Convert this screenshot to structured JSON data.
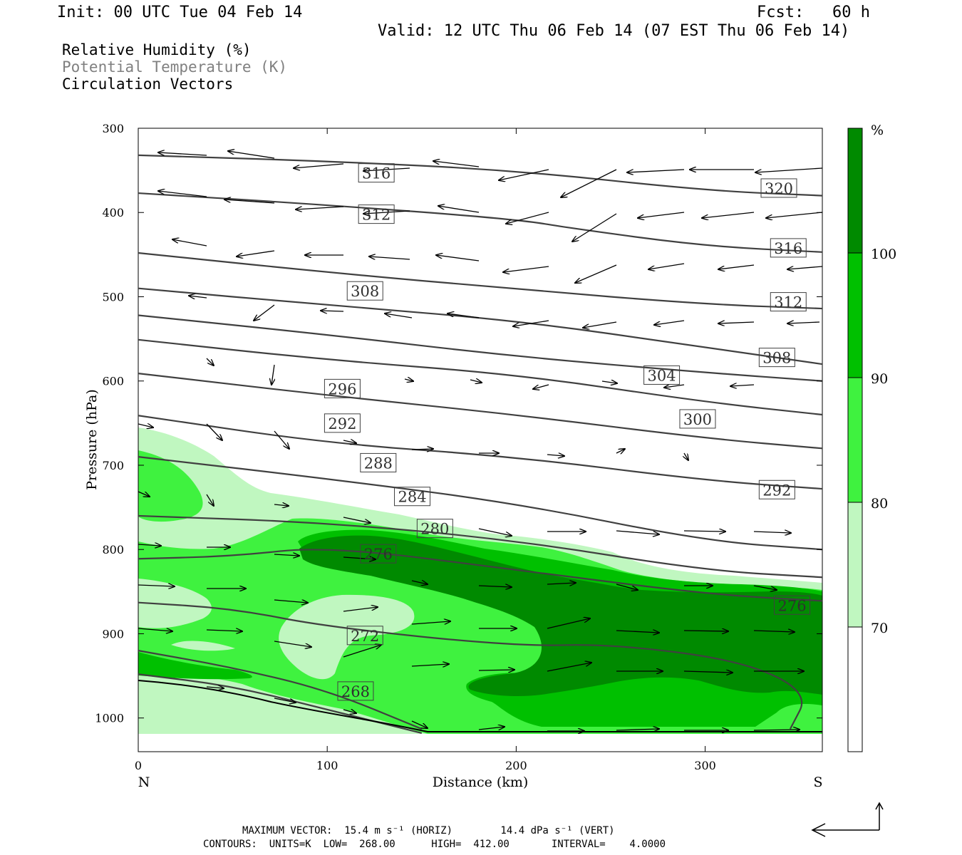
{
  "header": {
    "init": "Init: 00 UTC Tue 04 Feb 14",
    "fcst": "Fcst:   60 h",
    "valid": "Valid: 12 UTC Thu 06 Feb 14 (07 EST Thu 06 Feb 14)"
  },
  "legend_lines": {
    "rh": "Relative Humidity (%)",
    "theta": "Potential Temperature (K)",
    "vectors": "Circulation Vectors"
  },
  "footer": {
    "line1": "MAXIMUM VECTOR:  15.4 m s⁻¹ (HORIZ)        14.4 dPa s⁻¹ (VERT)",
    "line2": "CONTOURS:  UNITS=K  LOW=  268.00      HIGH=  412.00       INTERVAL=    4.0000"
  },
  "colors": {
    "rh_70_80": "#c0f7c0",
    "rh_80_90": "#3ff23f",
    "rh_90_100": "#00c000",
    "rh_100": "#008a00",
    "contour": "#404040"
  },
  "chart_data": {
    "type": "cross-section",
    "xlabel": "Distance (km)",
    "ylabel": "Pressure (hPa)",
    "xlim": [
      0,
      362
    ],
    "ylim": [
      1040,
      300
    ],
    "x_ticks": [
      "0",
      "100",
      "200",
      "300"
    ],
    "x_tick_values": [
      0,
      100,
      200,
      300
    ],
    "y_ticks": [
      "300",
      "400",
      "500",
      "600",
      "700",
      "800",
      "900",
      "1000"
    ],
    "y_tick_values": [
      300,
      400,
      500,
      600,
      700,
      800,
      900,
      1000
    ],
    "end_labels": {
      "left": "N",
      "right": "S"
    },
    "colorbar": {
      "unit": "%",
      "levels": [
        "70",
        "80",
        "90",
        "100"
      ],
      "level_values": [
        70,
        80,
        90,
        100
      ]
    },
    "theta_contours": [
      {
        "label": "320",
        "points": [
          [
            0,
            332
          ],
          [
            100,
            339
          ],
          [
            200,
            350
          ],
          [
            300,
            374
          ],
          [
            362,
            380
          ]
        ]
      },
      {
        "label": "316",
        "points": [
          [
            0,
            377
          ],
          [
            100,
            391
          ],
          [
            200,
            408
          ],
          [
            230,
            419
          ],
          [
            300,
            440
          ],
          [
            362,
            447
          ]
        ]
      },
      {
        "label": "312",
        "points": [
          [
            0,
            448
          ],
          [
            100,
            471
          ],
          [
            200,
            491
          ],
          [
            300,
            509
          ],
          [
            362,
            514
          ]
        ]
      },
      {
        "label": "308",
        "points": [
          [
            0,
            490
          ],
          [
            100,
            510
          ],
          [
            200,
            528
          ],
          [
            300,
            560
          ],
          [
            362,
            580
          ]
        ]
      },
      {
        "label": "304",
        "points": [
          [
            0,
            522
          ],
          [
            100,
            545
          ],
          [
            200,
            571
          ],
          [
            300,
            590
          ],
          [
            362,
            600
          ]
        ]
      },
      {
        "label": "300",
        "points": [
          [
            0,
            551
          ],
          [
            100,
            575
          ],
          [
            200,
            592
          ],
          [
            300,
            625
          ],
          [
            362,
            640
          ]
        ]
      },
      {
        "label": "296",
        "points": [
          [
            0,
            591
          ],
          [
            100,
            617
          ],
          [
            200,
            640
          ],
          [
            300,
            668
          ],
          [
            362,
            680
          ]
        ]
      },
      {
        "label": "292",
        "points": [
          [
            0,
            641
          ],
          [
            100,
            674
          ],
          [
            200,
            690
          ],
          [
            300,
            718
          ],
          [
            362,
            728
          ]
        ]
      },
      {
        "label": "288",
        "points": [
          [
            0,
            690
          ],
          [
            100,
            716
          ],
          [
            200,
            745
          ],
          [
            300,
            790
          ],
          [
            362,
            800
          ]
        ]
      },
      {
        "label": "284",
        "points": [
          [
            0,
            760
          ],
          [
            100,
            768
          ],
          [
            200,
            789
          ],
          [
            300,
            825
          ],
          [
            362,
            833
          ]
        ]
      },
      {
        "label": "280",
        "points": [
          [
            0,
            811
          ],
          [
            50,
            808
          ],
          [
            100,
            796
          ],
          [
            200,
            824
          ],
          [
            300,
            853
          ],
          [
            362,
            861
          ]
        ]
      },
      {
        "label": "276",
        "points": [
          [
            0,
            863
          ],
          [
            50,
            870
          ],
          [
            100,
            892
          ],
          [
            200,
            915
          ],
          [
            250,
            912
          ],
          [
            320,
            932
          ],
          [
            355,
            970
          ],
          [
            345,
            1013
          ]
        ]
      },
      {
        "label": "272",
        "points": [
          [
            0,
            920
          ],
          [
            50,
            940
          ],
          [
            100,
            967
          ],
          [
            150,
            1013
          ]
        ]
      },
      {
        "label": "268",
        "points": [
          [
            0,
            948
          ],
          [
            50,
            962
          ],
          [
            100,
            990
          ],
          [
            150,
            1018
          ]
        ]
      }
    ],
    "contour_label_positions": [
      {
        "label": "316",
        "x": 126,
        "p": 353
      },
      {
        "label": "312",
        "x": 126,
        "p": 402
      },
      {
        "label": "320",
        "x": 339,
        "p": 371
      },
      {
        "label": "316",
        "x": 344,
        "p": 442
      },
      {
        "label": "312",
        "x": 344,
        "p": 506
      },
      {
        "label": "308",
        "x": 120,
        "p": 493
      },
      {
        "label": "308",
        "x": 338,
        "p": 572
      },
      {
        "label": "304",
        "x": 277,
        "p": 593
      },
      {
        "label": "300",
        "x": 296,
        "p": 645
      },
      {
        "label": "296",
        "x": 108,
        "p": 609
      },
      {
        "label": "292",
        "x": 108,
        "p": 650
      },
      {
        "label": "292",
        "x": 338,
        "p": 729
      },
      {
        "label": "288",
        "x": 127,
        "p": 697
      },
      {
        "label": "284",
        "x": 145,
        "p": 737
      },
      {
        "label": "280",
        "x": 157,
        "p": 775
      },
      {
        "label": "276",
        "x": 127,
        "p": 805
      },
      {
        "label": "276",
        "x": 346,
        "p": 866
      },
      {
        "label": "272",
        "x": 120,
        "p": 902
      },
      {
        "label": "268",
        "x": 115,
        "p": 968
      }
    ]
  }
}
